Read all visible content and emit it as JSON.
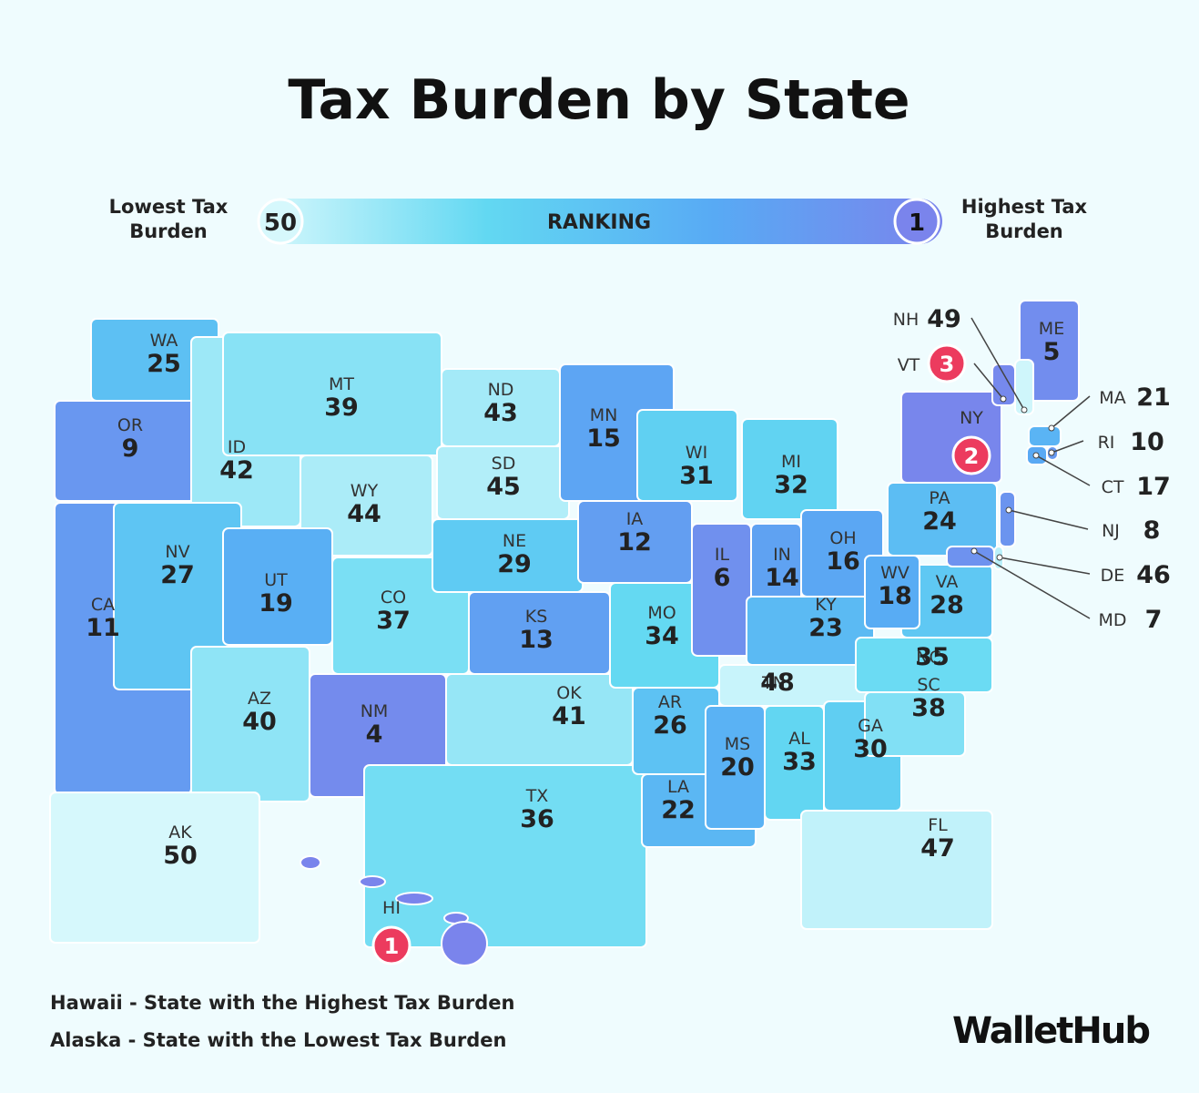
{
  "title": "Tax Burden by State",
  "legend": {
    "low_label": "Lowest Tax Burden",
    "low_rank": 50,
    "bar_label": "RANKING",
    "high_rank": 1,
    "high_label": "Highest Tax Burden",
    "color_scale": [
      "#d6f8fc",
      "#62d8f2",
      "#58aaf4",
      "#7a84ec"
    ]
  },
  "states": [
    {
      "abbr": "WA",
      "rank": 25
    },
    {
      "abbr": "OR",
      "rank": 9
    },
    {
      "abbr": "CA",
      "rank": 11
    },
    {
      "abbr": "ID",
      "rank": 42
    },
    {
      "abbr": "NV",
      "rank": 27
    },
    {
      "abbr": "MT",
      "rank": 39
    },
    {
      "abbr": "WY",
      "rank": 44
    },
    {
      "abbr": "UT",
      "rank": 19
    },
    {
      "abbr": "AZ",
      "rank": 40
    },
    {
      "abbr": "CO",
      "rank": 37
    },
    {
      "abbr": "NM",
      "rank": 4
    },
    {
      "abbr": "ND",
      "rank": 43
    },
    {
      "abbr": "SD",
      "rank": 45
    },
    {
      "abbr": "NE",
      "rank": 29
    },
    {
      "abbr": "KS",
      "rank": 13
    },
    {
      "abbr": "OK",
      "rank": 41
    },
    {
      "abbr": "TX",
      "rank": 36
    },
    {
      "abbr": "MN",
      "rank": 15
    },
    {
      "abbr": "IA",
      "rank": 12
    },
    {
      "abbr": "MO",
      "rank": 34
    },
    {
      "abbr": "AR",
      "rank": 26
    },
    {
      "abbr": "LA",
      "rank": 22
    },
    {
      "abbr": "WI",
      "rank": 31
    },
    {
      "abbr": "IL",
      "rank": 6
    },
    {
      "abbr": "MI",
      "rank": 32
    },
    {
      "abbr": "IN",
      "rank": 14
    },
    {
      "abbr": "OH",
      "rank": 16
    },
    {
      "abbr": "KY",
      "rank": 23
    },
    {
      "abbr": "TN",
      "rank": 48
    },
    {
      "abbr": "MS",
      "rank": 20
    },
    {
      "abbr": "AL",
      "rank": 33
    },
    {
      "abbr": "GA",
      "rank": 30
    },
    {
      "abbr": "FL",
      "rank": 47
    },
    {
      "abbr": "SC",
      "rank": 38
    },
    {
      "abbr": "NC",
      "rank": 35
    },
    {
      "abbr": "VA",
      "rank": 28
    },
    {
      "abbr": "WV",
      "rank": 18
    },
    {
      "abbr": "PA",
      "rank": 24
    },
    {
      "abbr": "NY",
      "rank": 2,
      "badge": true
    },
    {
      "abbr": "ME",
      "rank": 5
    },
    {
      "abbr": "NH",
      "rank": 49
    },
    {
      "abbr": "VT",
      "rank": 3,
      "badge": true
    },
    {
      "abbr": "MA",
      "rank": 21
    },
    {
      "abbr": "RI",
      "rank": 10
    },
    {
      "abbr": "CT",
      "rank": 17
    },
    {
      "abbr": "NJ",
      "rank": 8
    },
    {
      "abbr": "DE",
      "rank": 46
    },
    {
      "abbr": "MD",
      "rank": 7
    },
    {
      "abbr": "AK",
      "rank": 50
    },
    {
      "abbr": "HI",
      "rank": 1,
      "badge": true
    }
  ],
  "notes": [
    "Hawaii - State with the Highest Tax Burden",
    "Alaska - State with the Lowest Tax Burden"
  ],
  "brand": "WalletHub"
}
